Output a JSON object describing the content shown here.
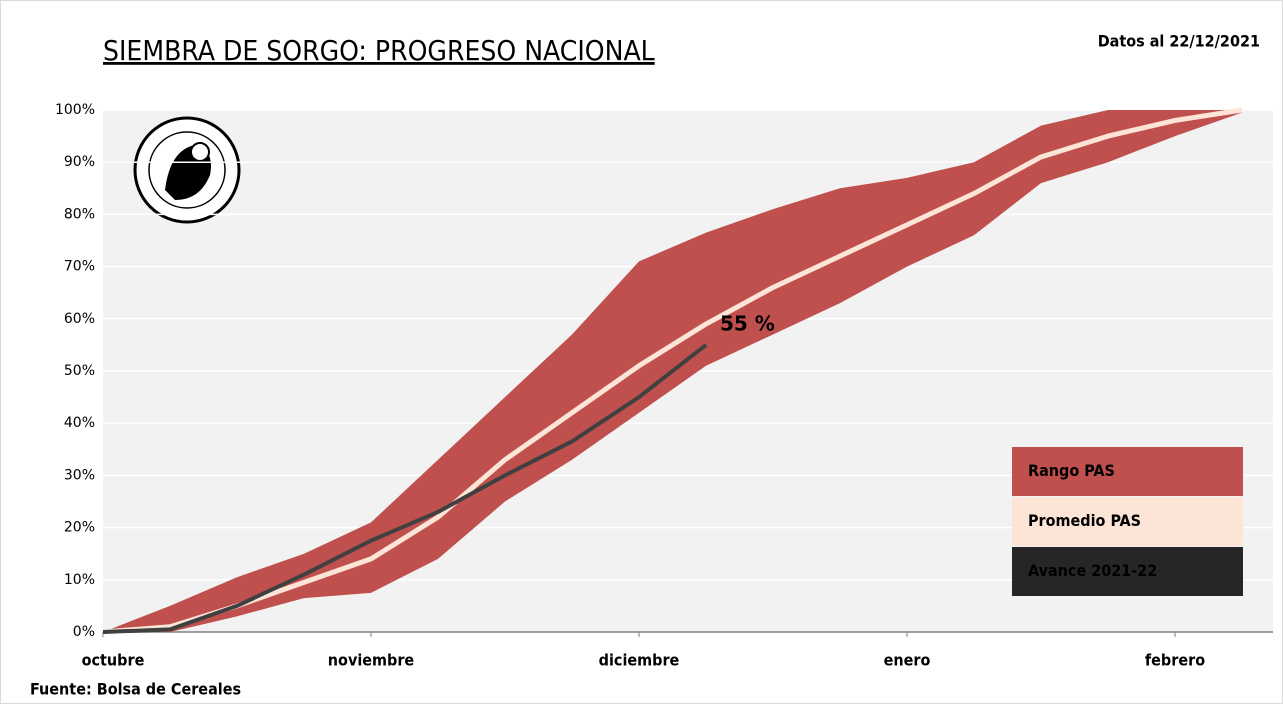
{
  "chart_data": {
    "type": "line",
    "title": "SIEMBRA DE SORGO: PROGRESO NACIONAL",
    "subtitle": "Datos al 22/12/2021",
    "source": "Fuente: Bolsa de Cereales",
    "categories": [
      "octubre",
      null,
      null,
      null,
      "noviembre",
      null,
      null,
      null,
      "diciembre",
      null,
      null,
      null,
      "enero",
      null,
      null,
      null,
      "febrero",
      null
    ],
    "ylim": [
      0,
      100
    ],
    "yticks": [
      {
        "value": 0,
        "label": "0%"
      },
      {
        "value": 10,
        "label": "10%"
      },
      {
        "value": 20,
        "label": "20%"
      },
      {
        "value": 30,
        "label": "30%"
      },
      {
        "value": 40,
        "label": "40%"
      },
      {
        "value": 50,
        "label": "50%"
      },
      {
        "value": 60,
        "label": "60%"
      },
      {
        "value": 70,
        "label": "70%"
      },
      {
        "value": 80,
        "label": "80%"
      },
      {
        "value": 90,
        "label": "90%"
      },
      {
        "value": 100,
        "label": "100%"
      }
    ],
    "grid": true,
    "range": {
      "name": "Rango PAS",
      "color": "#c0504d",
      "low": [
        0,
        0,
        3,
        6.5,
        7.5,
        14,
        25,
        33,
        42,
        51,
        57,
        63,
        70,
        76,
        86,
        90,
        95,
        99.5
      ],
      "high": [
        0,
        5,
        10.5,
        15,
        21,
        33,
        45,
        57,
        71,
        76.5,
        81,
        85,
        87,
        90,
        97,
        100,
        100,
        100
      ]
    },
    "series": [
      {
        "name": "Promedio PAS",
        "color": "#fce4d6",
        "values": [
          0,
          1,
          5,
          9.5,
          14,
          22,
          33,
          42,
          51,
          59,
          66,
          72,
          78,
          84,
          91,
          95,
          98,
          100
        ]
      },
      {
        "name": "Avance 2021-22",
        "color": "#404040",
        "values": [
          0,
          0.5,
          5,
          11,
          17.5,
          23,
          30,
          36.5,
          45,
          55,
          null,
          null,
          null,
          null,
          null,
          null,
          null,
          null
        ],
        "value_labels": [
          null,
          null,
          null,
          null,
          null,
          null,
          null,
          null,
          null,
          "55 %",
          null,
          null,
          null,
          null,
          null,
          null,
          null,
          null
        ]
      }
    ]
  }
}
